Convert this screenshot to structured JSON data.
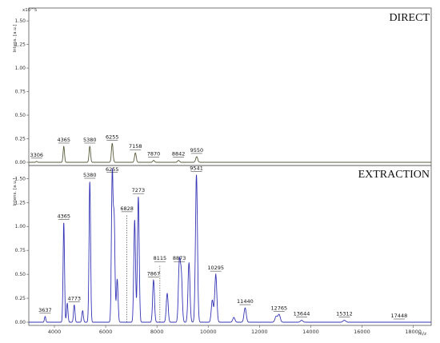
{
  "chart_data": [
    {
      "type": "line",
      "title": "DIRECT",
      "ylabel": "Intens. [a.u.]",
      "yexponent": "x10^5",
      "xlabel": "",
      "xlim": [
        3000,
        18700
      ],
      "ylim": [
        0,
        1.62
      ],
      "yticks": [
        0.0,
        0.25,
        0.5,
        0.75,
        1.0,
        1.25,
        1.5
      ],
      "ytick_labels": [
        "0.00",
        "0.25",
        "0.50",
        "0.75",
        "1.00",
        "1.25",
        "1.50"
      ],
      "line_color": "#5a5a3c",
      "peaks": [
        {
          "x": 3306,
          "y": 0.01,
          "label": "3306"
        },
        {
          "x": 4365,
          "y": 0.17,
          "label": "4365"
        },
        {
          "x": 5380,
          "y": 0.17,
          "label": "5380"
        },
        {
          "x": 6255,
          "y": 0.2,
          "label": "6255"
        },
        {
          "x": 7158,
          "y": 0.1,
          "label": "7158"
        },
        {
          "x": 7870,
          "y": 0.02,
          "label": "7870"
        },
        {
          "x": 8842,
          "y": 0.02,
          "label": "8842"
        },
        {
          "x": 9550,
          "y": 0.06,
          "label": "9550"
        }
      ]
    },
    {
      "type": "line",
      "title": "EXTRACTION",
      "ylabel": "Intens. [a.u.]",
      "xlabel": "m/z",
      "xlim": [
        3000,
        18700
      ],
      "ylim": [
        0,
        1.62
      ],
      "xticks": [
        4000,
        6000,
        8000,
        10000,
        12000,
        14000,
        16000,
        18000
      ],
      "xtick_labels": [
        "4000",
        "6000",
        "8000",
        "10000",
        "12000",
        "14000",
        "16000",
        "18000"
      ],
      "yticks": [
        0.0,
        0.25,
        0.5,
        0.75,
        1.0,
        1.25,
        1.5
      ],
      "ytick_labels": [
        "0.00",
        "0.25",
        "0.50",
        "0.75",
        "1.00",
        "1.25",
        "1.50"
      ],
      "line_color": "#3535b5",
      "peaks": [
        {
          "x": 3637,
          "y": 0.06,
          "label": "3637"
        },
        {
          "x": 4365,
          "y": 1.04,
          "label": "4365"
        },
        {
          "x": 4773,
          "y": 0.18,
          "label": "4773"
        },
        {
          "x": 5380,
          "y": 1.47,
          "label": "5380"
        },
        {
          "x": 6255,
          "y": 1.53,
          "label": "6255"
        },
        {
          "x": 6828,
          "y": 0.0,
          "label": "6828",
          "dotted_to": 1.12
        },
        {
          "x": 7273,
          "y": 1.31,
          "label": "7273"
        },
        {
          "x": 7867,
          "y": 0.44,
          "label": "7867"
        },
        {
          "x": 8115,
          "y": 0.0,
          "label": "8115",
          "dotted_to": 0.6
        },
        {
          "x": 8873,
          "y": 0.6,
          "label": "8873"
        },
        {
          "x": 9541,
          "y": 1.54,
          "label": "9541"
        },
        {
          "x": 10295,
          "y": 0.5,
          "label": "10295"
        },
        {
          "x": 11440,
          "y": 0.15,
          "label": "11440"
        },
        {
          "x": 12765,
          "y": 0.08,
          "label": "12765"
        },
        {
          "x": 13644,
          "y": 0.02,
          "label": "13644"
        },
        {
          "x": 15312,
          "y": 0.02,
          "label": "15312"
        },
        {
          "x": 17448,
          "y": 0.0,
          "label": "17448"
        }
      ],
      "unlabeled_peaks": [
        {
          "x": 4500,
          "y": 0.2
        },
        {
          "x": 5100,
          "y": 0.12
        },
        {
          "x": 6330,
          "y": 1.05
        },
        {
          "x": 6450,
          "y": 0.45
        },
        {
          "x": 7130,
          "y": 1.07
        },
        {
          "x": 8400,
          "y": 0.3
        },
        {
          "x": 8950,
          "y": 0.48
        },
        {
          "x": 9250,
          "y": 0.62
        },
        {
          "x": 10160,
          "y": 0.23
        },
        {
          "x": 11000,
          "y": 0.05
        },
        {
          "x": 12650,
          "y": 0.06
        }
      ]
    }
  ]
}
